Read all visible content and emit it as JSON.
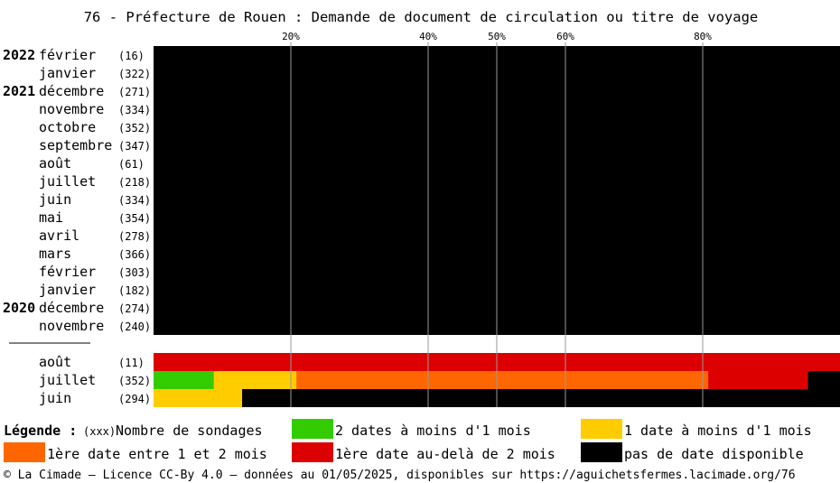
{
  "chart_data": {
    "type": "bar",
    "orientation": "horizontal-stacked-percent",
    "title": "76 - Préfecture de Rouen : Demande de document de circulation ou titre de voyage",
    "x_ticks": [
      "20%",
      "40%",
      "50%",
      "60%",
      "80%"
    ],
    "x_tick_values": [
      20,
      40,
      50,
      60,
      80
    ],
    "xlim": [
      0,
      100
    ],
    "grid": "vertical lines at ticks",
    "series": [
      {
        "name": "2 dates à moins d'1 mois",
        "color": "#33cc00"
      },
      {
        "name": "1 date à moins d'1 mois",
        "color": "#ffcc00"
      },
      {
        "name": "1ère date entre 1 et 2 mois",
        "color": "#ff6600"
      },
      {
        "name": "1ère date au-delà de 2 mois",
        "color": "#dd0000"
      },
      {
        "name": "pas de date disponible",
        "color": "#000000"
      }
    ],
    "rows": [
      {
        "year": "2022",
        "month": "février",
        "count": "(16)",
        "values": [
          0,
          0,
          0,
          0,
          100
        ]
      },
      {
        "year": "",
        "month": "janvier",
        "count": "(322)",
        "values": [
          0,
          0,
          0,
          0,
          100
        ]
      },
      {
        "year": "2021",
        "month": "décembre",
        "count": "(271)",
        "values": [
          0,
          0,
          0,
          0,
          100
        ]
      },
      {
        "year": "",
        "month": "novembre",
        "count": "(334)",
        "values": [
          0,
          0,
          0,
          0,
          100
        ]
      },
      {
        "year": "",
        "month": "octobre",
        "count": "(352)",
        "values": [
          0,
          0,
          0,
          0,
          100
        ]
      },
      {
        "year": "",
        "month": "septembre",
        "count": "(347)",
        "values": [
          0,
          0,
          0,
          0,
          100
        ]
      },
      {
        "year": "",
        "month": "août",
        "count": "(61)",
        "values": [
          0,
          0,
          0,
          0,
          100
        ]
      },
      {
        "year": "",
        "month": "juillet",
        "count": "(218)",
        "values": [
          0,
          0,
          0,
          0,
          100
        ]
      },
      {
        "year": "",
        "month": "juin",
        "count": "(334)",
        "values": [
          0,
          0,
          0,
          0,
          100
        ]
      },
      {
        "year": "",
        "month": "mai",
        "count": "(354)",
        "values": [
          0,
          0,
          0,
          0,
          100
        ]
      },
      {
        "year": "",
        "month": "avril",
        "count": "(278)",
        "values": [
          0,
          0,
          0,
          0,
          100
        ]
      },
      {
        "year": "",
        "month": "mars",
        "count": "(366)",
        "values": [
          0,
          0,
          0,
          0,
          100
        ]
      },
      {
        "year": "",
        "month": "février",
        "count": "(303)",
        "values": [
          0,
          0,
          0,
          0,
          100
        ]
      },
      {
        "year": "",
        "month": "janvier",
        "count": "(182)",
        "values": [
          0,
          0,
          0,
          0,
          100
        ]
      },
      {
        "year": "2020",
        "month": "décembre",
        "count": "(274)",
        "values": [
          0,
          0,
          0,
          0,
          100
        ]
      },
      {
        "year": "",
        "month": "novembre",
        "count": "(240)",
        "values": [
          0,
          0,
          0,
          0,
          100
        ]
      },
      {
        "separator": true
      },
      {
        "year": "",
        "month": "août",
        "count": "(11)",
        "values": [
          0,
          0,
          0,
          100,
          0
        ]
      },
      {
        "year": "",
        "month": "juillet",
        "count": "(352)",
        "values": [
          8.8,
          12.0,
          60.0,
          14.5,
          4.7
        ]
      },
      {
        "year": "",
        "month": "juin",
        "count": "(294)",
        "values": [
          0,
          12.9,
          0,
          0,
          87.1
        ]
      }
    ]
  },
  "legend": {
    "label": "Légende :",
    "count_key": "(xxx)",
    "count_label": "Nombre de sondages"
  },
  "footer": "© La Cimade — Licence CC-By 4.0 — données au 01/05/2025, disponibles sur https://aguichetsfermes.lacimade.org/76"
}
